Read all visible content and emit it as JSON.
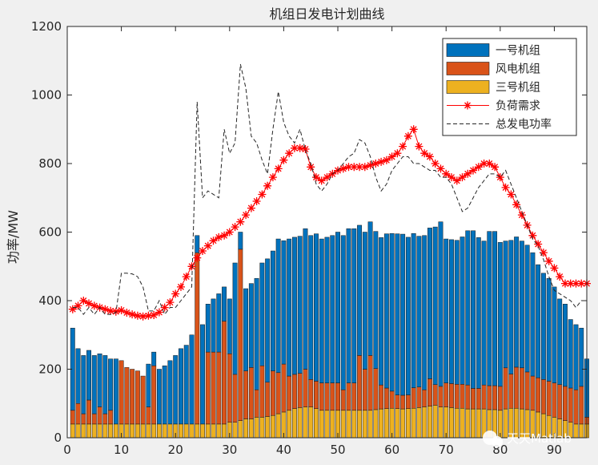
{
  "chart_data": {
    "type": "bar",
    "stacked": true,
    "title": "机组日发电计划曲线",
    "ylabel": "功率/MW",
    "xlabel": "",
    "xlim": [
      0,
      96
    ],
    "ylim": [
      0,
      1200
    ],
    "xticks": [
      0,
      10,
      20,
      30,
      40,
      50,
      60,
      70,
      80,
      90
    ],
    "yticks": [
      0,
      200,
      400,
      600,
      800,
      1000,
      1200
    ],
    "grid": false,
    "legend_position": "top-right",
    "x": [
      1,
      2,
      3,
      4,
      5,
      6,
      7,
      8,
      9,
      10,
      11,
      12,
      13,
      14,
      15,
      16,
      17,
      18,
      19,
      20,
      21,
      22,
      23,
      24,
      25,
      26,
      27,
      28,
      29,
      30,
      31,
      32,
      33,
      34,
      35,
      36,
      37,
      38,
      39,
      40,
      41,
      42,
      43,
      44,
      45,
      46,
      47,
      48,
      49,
      50,
      51,
      52,
      53,
      54,
      55,
      56,
      57,
      58,
      59,
      60,
      61,
      62,
      63,
      64,
      65,
      66,
      67,
      68,
      69,
      70,
      71,
      72,
      73,
      74,
      75,
      76,
      77,
      78,
      79,
      80,
      81,
      82,
      83,
      84,
      85,
      86,
      87,
      88,
      89,
      90,
      91,
      92,
      93,
      94,
      95,
      96
    ],
    "series": [
      {
        "name": "一号机组",
        "kind": "bar",
        "color": "#0072bd",
        "values": [
          240,
          160,
          170,
          145,
          170,
          155,
          170,
          150,
          190,
          0,
          0,
          0,
          0,
          0,
          125,
          40,
          160,
          170,
          185,
          200,
          220,
          230,
          260,
          50,
          290,
          140,
          155,
          170,
          100,
          160,
          325,
          50,
          240,
          245,
          325,
          300,
          360,
          350,
          390,
          360,
          400,
          400,
          400,
          410,
          420,
          430,
          420,
          425,
          430,
          440,
          450,
          450,
          450,
          380,
          400,
          390,
          400,
          430,
          450,
          460,
          470,
          470,
          460,
          450,
          440,
          450,
          440,
          460,
          480,
          420,
          420,
          420,
          430,
          450,
          460,
          440,
          420,
          450,
          450,
          420,
          370,
          390,
          380,
          370,
          370,
          360,
          330,
          310,
          300,
          280,
          250,
          240,
          200,
          190,
          170,
          170
        ]
      },
      {
        "name": "风电机组",
        "kind": "bar",
        "color": "#d95319",
        "values": [
          40,
          60,
          30,
          70,
          30,
          50,
          30,
          40,
          0,
          185,
          165,
          160,
          155,
          140,
          50,
          170,
          0,
          0,
          0,
          0,
          0,
          0,
          0,
          500,
          0,
          210,
          210,
          210,
          300,
          200,
          140,
          500,
          140,
          150,
          80,
          150,
          100,
          130,
          120,
          140,
          100,
          100,
          100,
          110,
          80,
          80,
          80,
          80,
          80,
          80,
          60,
          80,
          80,
          160,
          120,
          160,
          120,
          70,
          60,
          50,
          40,
          40,
          40,
          60,
          60,
          50,
          80,
          60,
          60,
          70,
          70,
          70,
          70,
          70,
          60,
          60,
          70,
          70,
          70,
          70,
          120,
          100,
          120,
          120,
          110,
          100,
          100,
          100,
          100,
          100,
          100,
          100,
          100,
          100,
          110,
          20
        ]
      },
      {
        "name": "三号机组",
        "kind": "bar",
        "color": "#edb120",
        "values": [
          40,
          40,
          40,
          40,
          40,
          40,
          40,
          40,
          40,
          40,
          40,
          40,
          40,
          40,
          40,
          40,
          40,
          40,
          40,
          40,
          40,
          40,
          40,
          40,
          40,
          40,
          40,
          40,
          40,
          45,
          45,
          50,
          55,
          55,
          60,
          60,
          62,
          65,
          70,
          75,
          80,
          85,
          88,
          90,
          90,
          85,
          80,
          80,
          80,
          80,
          80,
          80,
          80,
          80,
          80,
          80,
          82,
          84,
          85,
          86,
          85,
          84,
          85,
          86,
          88,
          90,
          92,
          95,
          90,
          90,
          88,
          86,
          86,
          84,
          84,
          84,
          84,
          82,
          82,
          80,
          84,
          86,
          86,
          84,
          82,
          80,
          75,
          70,
          65,
          60,
          55,
          50,
          45,
          40,
          40,
          40
        ]
      },
      {
        "name": "负荷需求",
        "kind": "line",
        "color": "#ff0000",
        "marker": "star",
        "values": [
          375,
          385,
          400,
          392,
          385,
          380,
          375,
          370,
          368,
          372,
          365,
          360,
          356,
          354,
          356,
          358,
          366,
          380,
          395,
          420,
          440,
          470,
          500,
          525,
          545,
          560,
          575,
          585,
          590,
          600,
          615,
          630,
          650,
          670,
          690,
          710,
          735,
          760,
          785,
          810,
          830,
          845,
          845,
          842,
          790,
          760,
          750,
          760,
          770,
          780,
          785,
          790,
          790,
          790,
          790,
          795,
          800,
          805,
          810,
          820,
          830,
          850,
          880,
          900,
          850,
          830,
          820,
          800,
          785,
          770,
          760,
          750,
          760,
          770,
          780,
          790,
          800,
          800,
          790,
          760,
          730,
          710,
          680,
          650,
          620,
          590,
          565,
          540,
          515,
          495,
          470,
          450,
          450,
          450,
          450,
          450
        ]
      },
      {
        "name": "总发电功率",
        "kind": "line",
        "color": "#262626",
        "dash": "dashed",
        "values": [
          380,
          380,
          360,
          380,
          360,
          380,
          360,
          360,
          365,
          480,
          480,
          478,
          470,
          440,
          370,
          370,
          400,
          360,
          380,
          380,
          400,
          420,
          440,
          980,
          700,
          720,
          710,
          700,
          900,
          830,
          860,
          1090,
          1020,
          880,
          860,
          810,
          770,
          900,
          1010,
          920,
          880,
          860,
          900,
          840,
          800,
          740,
          720,
          740,
          770,
          780,
          800,
          820,
          830,
          870,
          860,
          820,
          760,
          720,
          740,
          780,
          800,
          820,
          820,
          800,
          800,
          790,
          780,
          780,
          760,
          760,
          740,
          700,
          660,
          670,
          700,
          730,
          750,
          770,
          770,
          760,
          780,
          740,
          700,
          660,
          620,
          580,
          560,
          520,
          470,
          430,
          420,
          410,
          400,
          380,
          400,
          400
        ]
      }
    ]
  },
  "watermark": {
    "text": "天天Matlab",
    "icon": "wechat-icon"
  }
}
